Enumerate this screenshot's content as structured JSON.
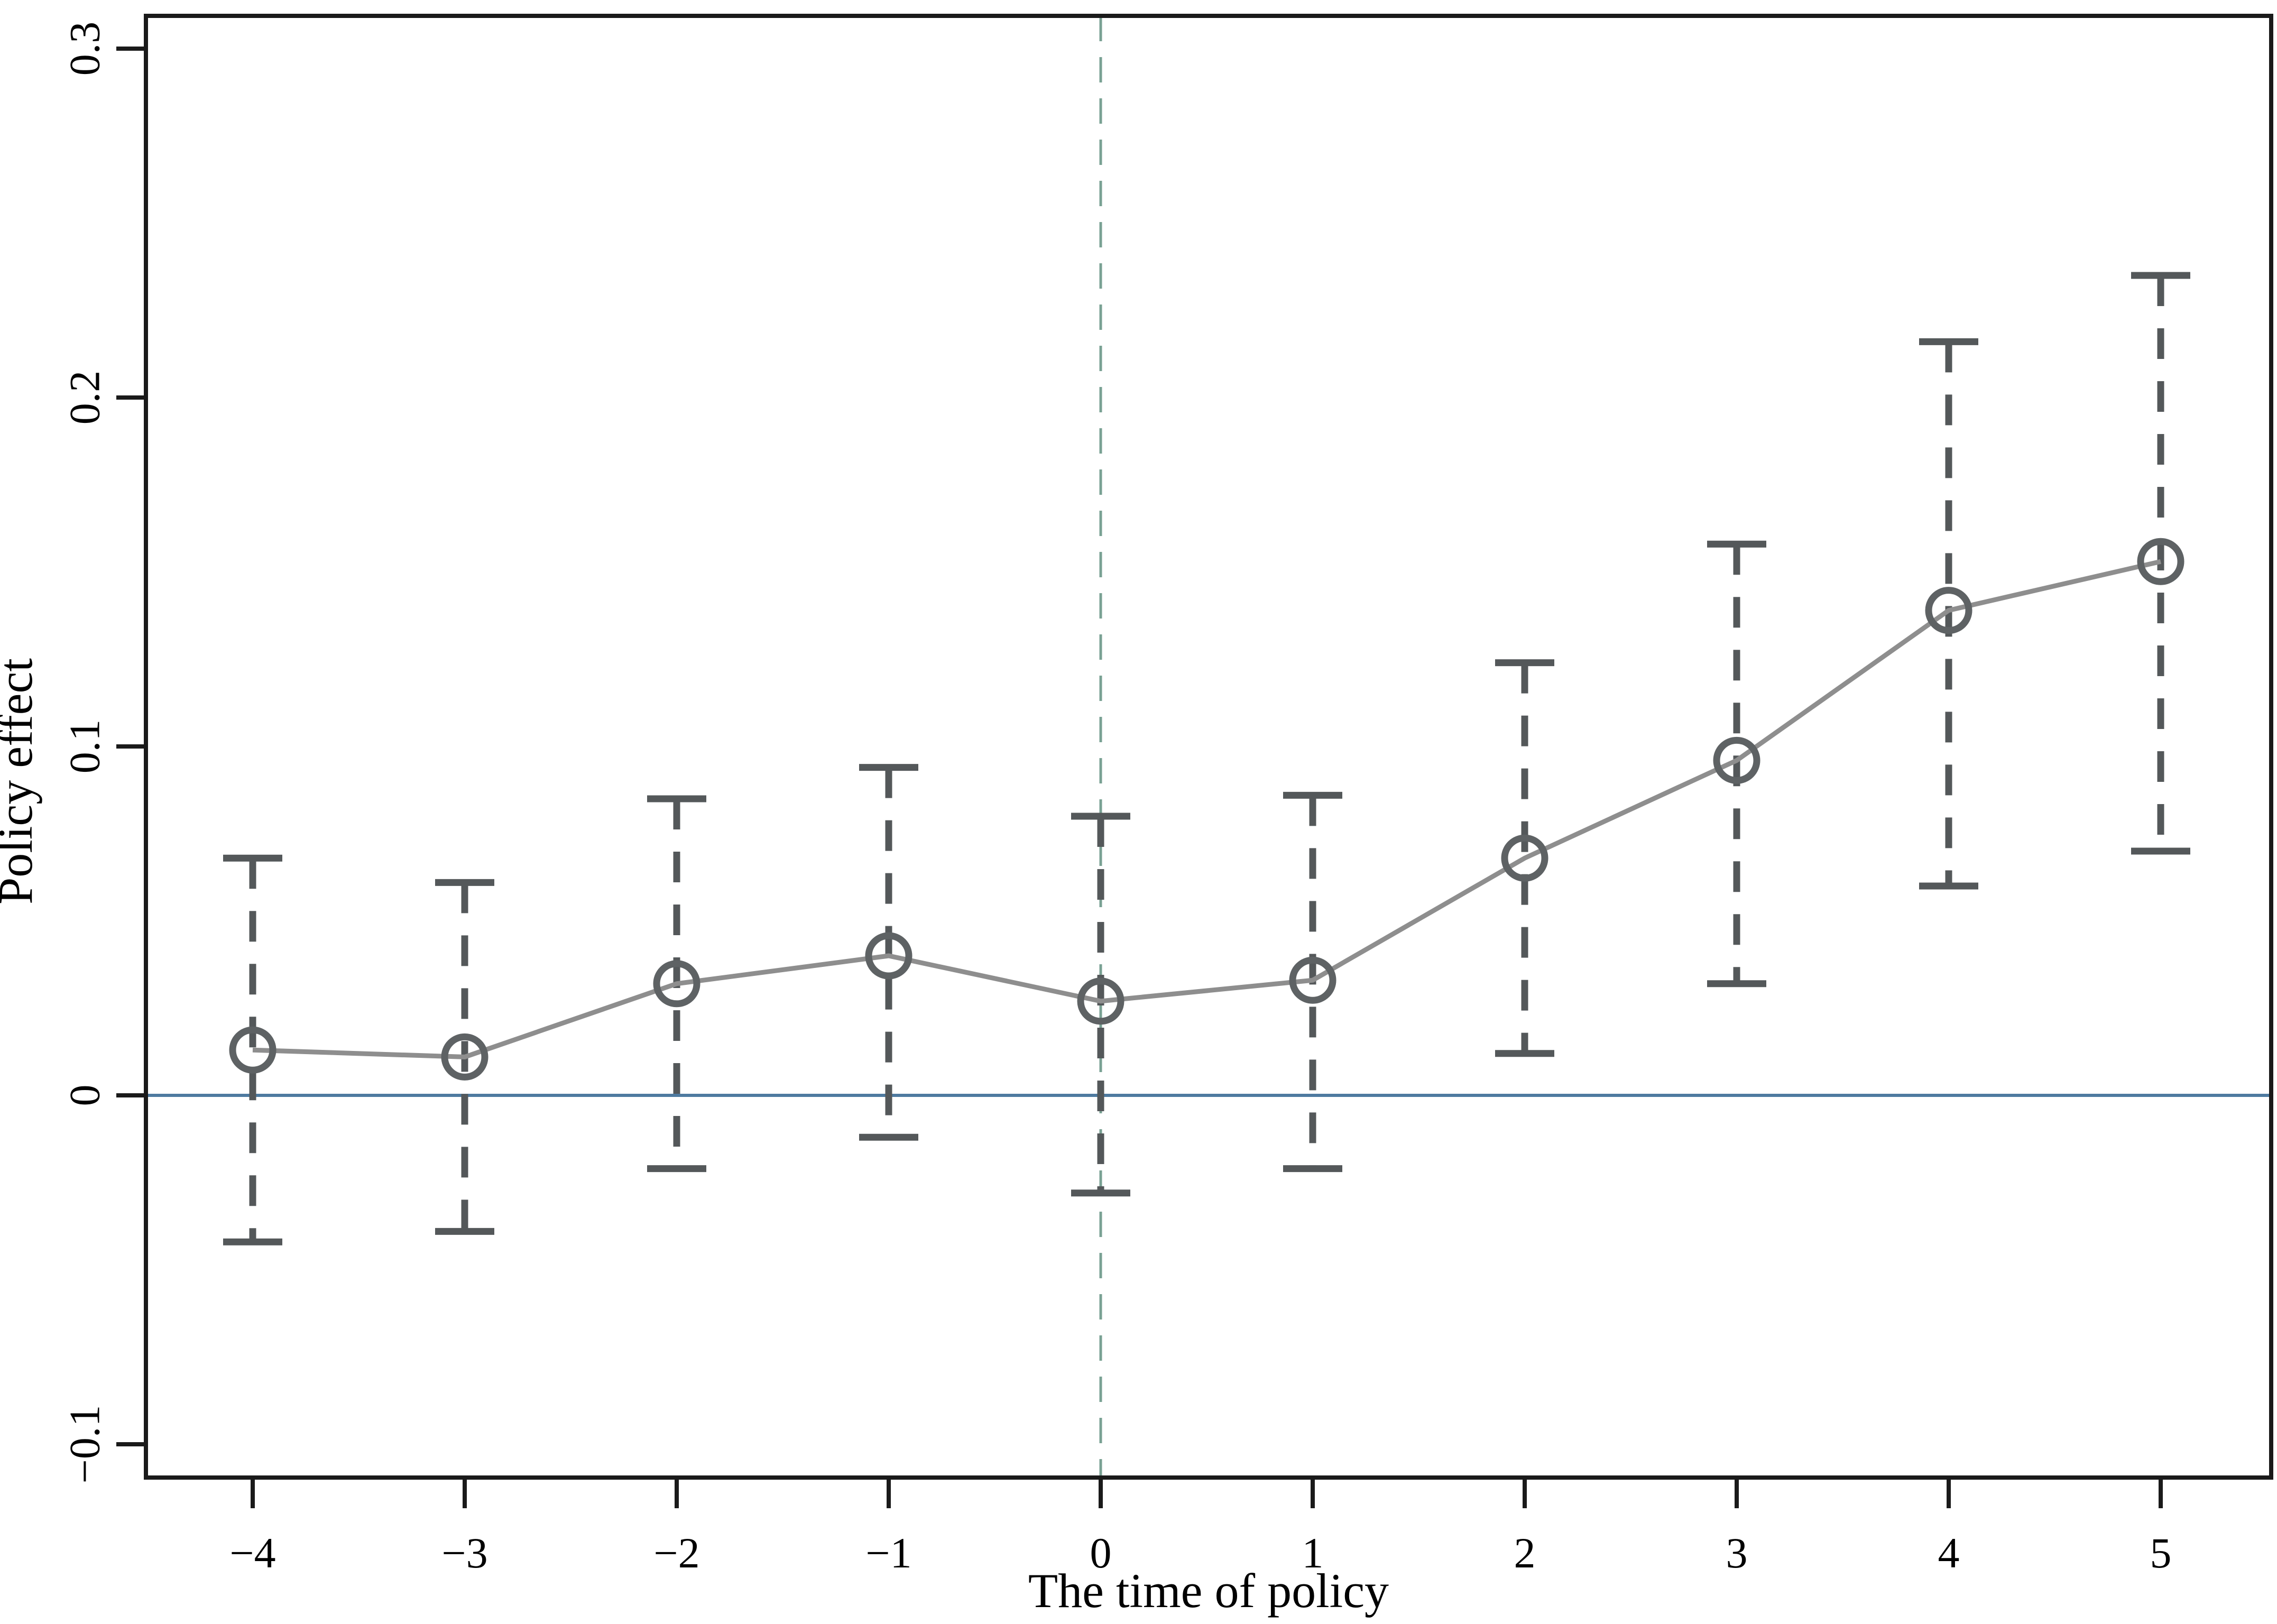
{
  "figure": {
    "xlabel": "The time of policy",
    "ylabel": "Policy effect"
  },
  "chart_data": {
    "type": "line",
    "title": "",
    "xlabel": "The time of policy",
    "ylabel": "Policy effect",
    "x": [
      -4,
      -3,
      -2,
      -1,
      0,
      1,
      2,
      3,
      4,
      5
    ],
    "x_tick_labels": [
      "−4",
      "−3",
      "−2",
      "−1",
      "0",
      "1",
      "2",
      "3",
      "4",
      "5"
    ],
    "y_tick_values": [
      0.3,
      0.2,
      0.1,
      0,
      -0.1
    ],
    "y_tick_labels": [
      "0.3",
      "0.2",
      "0.1",
      "0",
      "−0.1"
    ],
    "xlim": [
      -4.5,
      5.5
    ],
    "ylim": [
      -0.11,
      0.31
    ],
    "grid": false,
    "legend": false,
    "series": [
      {
        "name": "Policy effect estimate",
        "values": [
          0.013,
          0.011,
          0.032,
          0.04,
          0.027,
          0.033,
          0.068,
          0.096,
          0.139,
          0.153
        ]
      },
      {
        "name": "95% CI lower bound",
        "values": [
          -0.042,
          -0.039,
          -0.021,
          -0.012,
          -0.028,
          -0.021,
          0.012,
          0.032,
          0.06,
          0.07
        ]
      },
      {
        "name": "95% CI upper bound",
        "values": [
          0.068,
          0.061,
          0.085,
          0.094,
          0.08,
          0.086,
          0.124,
          0.158,
          0.216,
          0.235
        ]
      }
    ],
    "reference_lines": {
      "horizontal_y": 0,
      "vertical_x": 0
    },
    "styles": {
      "line_color": "#8e8e8e",
      "marker_color": "#5e6264",
      "ci_color": "#54585a",
      "zero_line_color": "#4e7aa0",
      "event_line_color": "#79a193",
      "frame_color": "#1a1a1a",
      "background": "#ffffff"
    }
  }
}
